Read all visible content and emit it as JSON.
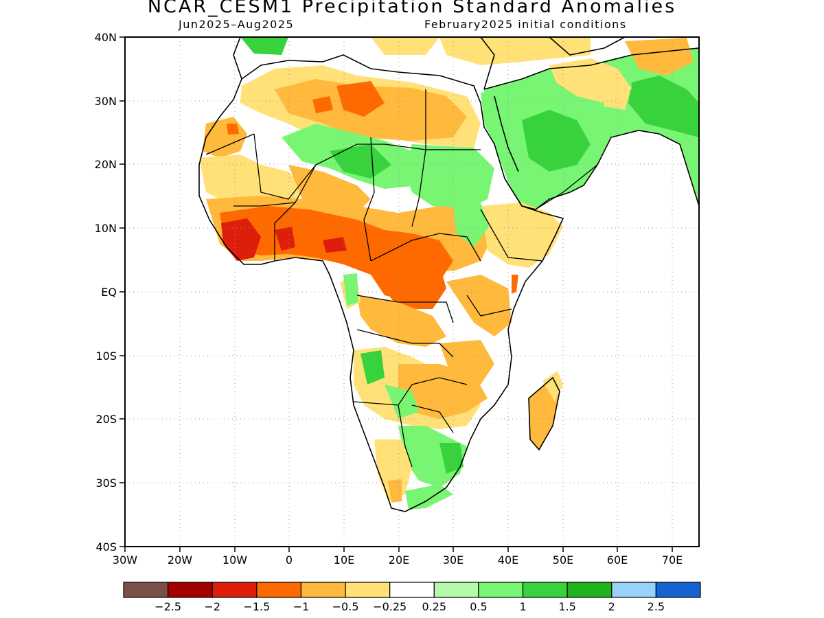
{
  "title": "NCAR_CESM1 Precipitation Standard Anomalies",
  "period": "Jun2025–Aug2025",
  "init": "February2025 initial conditions",
  "lat_labels": [
    "40N",
    "30N",
    "20N",
    "10N",
    "EQ",
    "10S",
    "20S",
    "30S",
    "40S"
  ],
  "lon_labels": [
    "30W",
    "20W",
    "10W",
    "0",
    "10E",
    "20E",
    "30E",
    "40E",
    "50E",
    "60E",
    "70E"
  ],
  "colorbar": {
    "colors": [
      "#7a5048",
      "#a50000",
      "#dc1e0a",
      "#ff6a00",
      "#ffb93c",
      "#ffe178",
      "#ffffff",
      "#b4faaa",
      "#78f573",
      "#37d23c",
      "#1eb41e",
      "#96d2fa",
      "#1464d2"
    ],
    "labels": [
      "−2.5",
      "−2",
      "−1.5",
      "−1",
      "−0.5",
      "−0.25",
      "0.25",
      "0.5",
      "1",
      "1.5",
      "2",
      "2.5"
    ]
  }
}
